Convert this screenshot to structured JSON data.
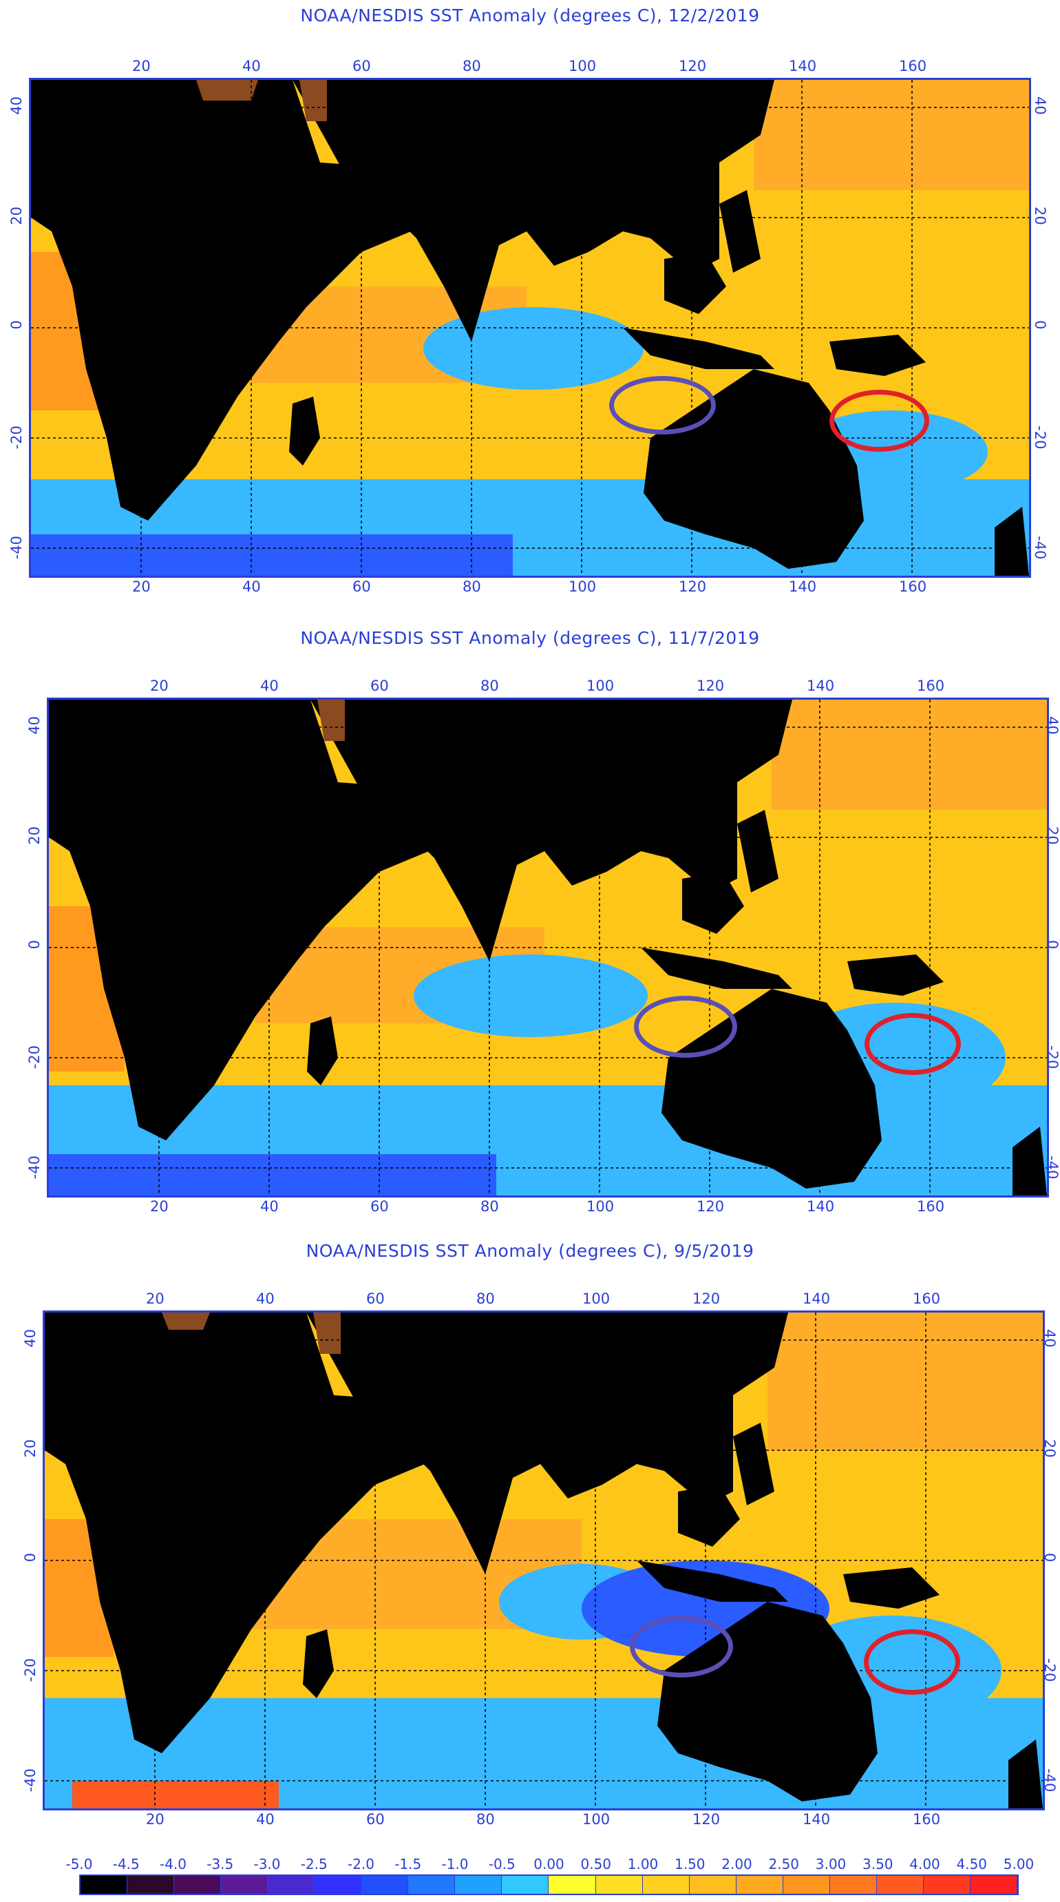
{
  "panels": [
    {
      "title": "NOAA/NESDIS SST Anomaly (degrees C), 12/2/2019",
      "top_ticks": [
        "20",
        "40",
        "60",
        "80",
        "100",
        "120",
        "140",
        "160"
      ],
      "bottom_ticks": [
        "20",
        "40",
        "60",
        "80",
        "100",
        "120",
        "140",
        "160"
      ],
      "left_ticks": [
        "40",
        "20",
        "0",
        "-20",
        "-40"
      ],
      "right_ticks": [
        "40",
        "20",
        "0",
        "-20",
        "-40"
      ]
    },
    {
      "title": "NOAA/NESDIS SST Anomaly (degrees C), 11/7/2019",
      "top_ticks": [
        "20",
        "40",
        "60",
        "80",
        "100",
        "120",
        "140",
        "160"
      ],
      "bottom_ticks": [
        "20",
        "40",
        "60",
        "80",
        "100",
        "120",
        "140",
        "160"
      ],
      "left_ticks": [
        "40",
        "20",
        "0",
        "-20",
        "-40"
      ],
      "right_ticks": [
        "40",
        "20",
        "0",
        "-20",
        "-40"
      ]
    },
    {
      "title": "NOAA/NESDIS SST Anomaly (degrees C), 9/5/2019",
      "top_ticks": [
        "20",
        "40",
        "60",
        "80",
        "100",
        "120",
        "140",
        "160"
      ],
      "bottom_ticks": [
        "20",
        "40",
        "60",
        "80",
        "100",
        "120",
        "140",
        "160"
      ],
      "left_ticks": [
        "40",
        "20",
        "0",
        "-20",
        "-40"
      ],
      "right_ticks": [
        "40",
        "20",
        "0",
        "-20",
        "-40"
      ]
    }
  ],
  "colors": {
    "land": "#000000",
    "ice": "#8b4a1f",
    "ocean_warm": "#ffc61a",
    "ocean_hot": "#ff9a1f",
    "ocean_cool": "#38b8ff",
    "ocean_cold": "#2a5cff",
    "purple_ellipse": "#5a4fb8",
    "red_ellipse": "#e0202a",
    "axis": "#2a3fd6"
  },
  "colorbar": {
    "labels": [
      "-5.0",
      "-4.5",
      "-4.0",
      "-3.5",
      "-3.0",
      "-2.5",
      "-2.0",
      "-1.5",
      "-1.0",
      "-0.5",
      "0.00",
      "0.50",
      "1.00",
      "1.50",
      "2.00",
      "2.50",
      "3.00",
      "3.50",
      "4.00",
      "4.50",
      "5.00"
    ],
    "colors": [
      "#000000",
      "#2a0a2a",
      "#4a0a5a",
      "#5a1a9a",
      "#4a2ad0",
      "#3030ff",
      "#2050ff",
      "#2078ff",
      "#20a0ff",
      "#30c8ff",
      "#ffff30",
      "#ffe020",
      "#ffd020",
      "#ffbe20",
      "#ffaa20",
      "#ff9620",
      "#ff7a20",
      "#ff5a20",
      "#ff3a20",
      "#ff2020"
    ]
  }
}
